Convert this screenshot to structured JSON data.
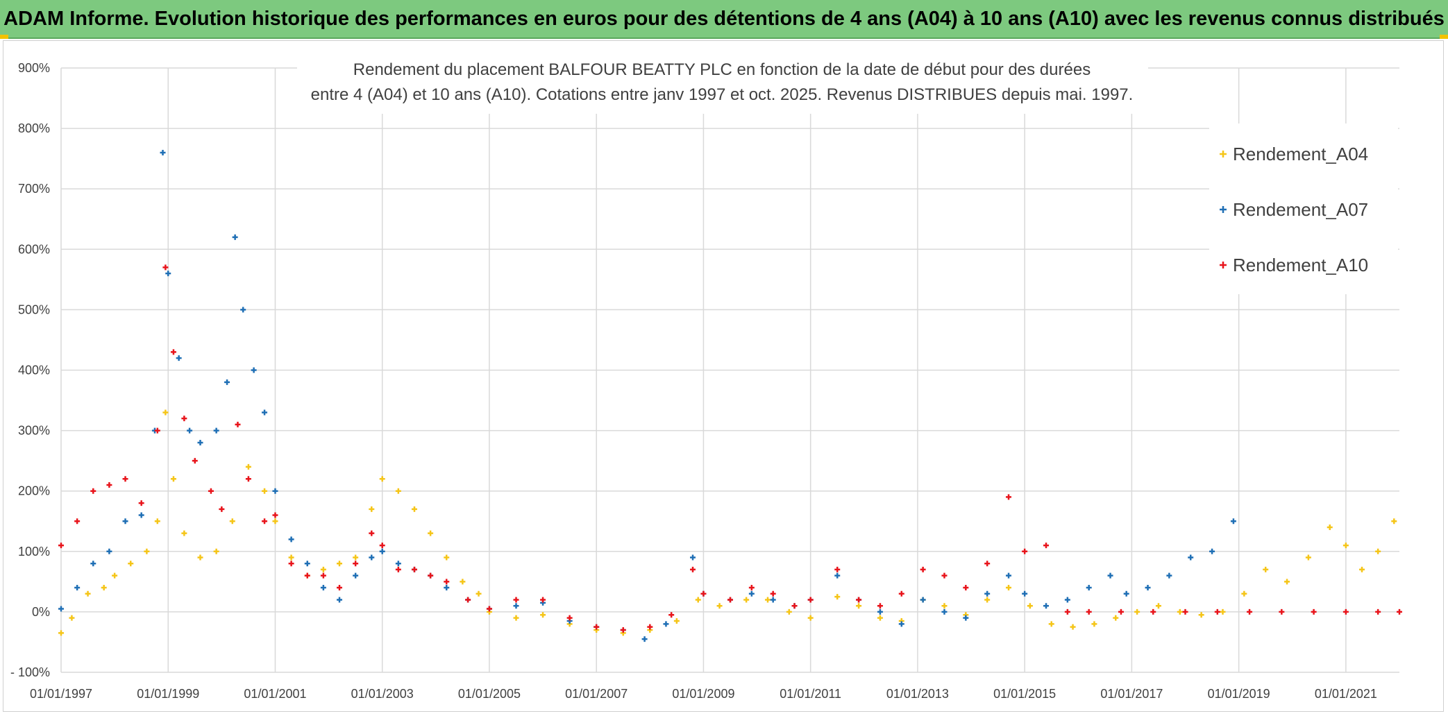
{
  "banner": {
    "text": "ADAM Informe. Evolution historique des performances en euros pour des détentions de 4 ans (A04) à 10 ans (A10) avec les revenus connus distribués"
  },
  "colors": {
    "banner_bg": "#7dc97f",
    "a04": "#f5c518",
    "a07": "#1f6fb5",
    "a10": "#e8141b",
    "grid": "#d9d9d9"
  },
  "chart_data": {
    "type": "scatter",
    "title_lines": [
      "Rendement du placement BALFOUR BEATTY PLC en fonction de la date de début pour des durées",
      "entre 4 (A04) et 10 ans (A10). Cotations entre janv 1997 et oct. 2025. Revenus DISTRIBUES depuis mai. 1997."
    ],
    "x_ticks": [
      "01/01/1997",
      "01/01/1999",
      "01/01/2001",
      "01/01/2003",
      "01/01/2005",
      "01/01/2007",
      "01/01/2009",
      "01/01/2011",
      "01/01/2013",
      "01/01/2015",
      "01/01/2017",
      "01/01/2019",
      "01/01/2021"
    ],
    "x_range": [
      1997.0,
      2022.0
    ],
    "y_ticks": [
      "- 100%",
      "0%",
      "100%",
      "200%",
      "300%",
      "400%",
      "500%",
      "600%",
      "700%",
      "800%",
      "900%"
    ],
    "y_range": [
      -100,
      900
    ],
    "legend_position": "top-right",
    "series": [
      {
        "name": "Rendement_A04",
        "color": "#f5c518",
        "points": [
          [
            1997.0,
            -35
          ],
          [
            1997.2,
            -10
          ],
          [
            1997.5,
            30
          ],
          [
            1997.8,
            40
          ],
          [
            1998.0,
            60
          ],
          [
            1998.3,
            80
          ],
          [
            1998.6,
            100
          ],
          [
            1998.8,
            150
          ],
          [
            1998.95,
            330
          ],
          [
            1999.1,
            220
          ],
          [
            1999.3,
            130
          ],
          [
            1999.6,
            90
          ],
          [
            1999.9,
            100
          ],
          [
            2000.2,
            150
          ],
          [
            2000.5,
            240
          ],
          [
            2000.8,
            200
          ],
          [
            2001.0,
            150
          ],
          [
            2001.3,
            90
          ],
          [
            2001.6,
            60
          ],
          [
            2001.9,
            70
          ],
          [
            2002.2,
            80
          ],
          [
            2002.5,
            90
          ],
          [
            2002.8,
            170
          ],
          [
            2003.0,
            220
          ],
          [
            2003.3,
            200
          ],
          [
            2003.6,
            170
          ],
          [
            2003.9,
            130
          ],
          [
            2004.2,
            90
          ],
          [
            2004.5,
            50
          ],
          [
            2004.8,
            30
          ],
          [
            2005.0,
            0
          ],
          [
            2005.5,
            -10
          ],
          [
            2006.0,
            -5
          ],
          [
            2006.5,
            -20
          ],
          [
            2007.0,
            -30
          ],
          [
            2007.5,
            -35
          ],
          [
            2008.0,
            -30
          ],
          [
            2008.5,
            -15
          ],
          [
            2008.9,
            20
          ],
          [
            2009.3,
            10
          ],
          [
            2009.8,
            20
          ],
          [
            2010.2,
            20
          ],
          [
            2010.6,
            0
          ],
          [
            2011.0,
            -10
          ],
          [
            2011.5,
            25
          ],
          [
            2011.9,
            10
          ],
          [
            2012.3,
            -10
          ],
          [
            2012.7,
            -15
          ],
          [
            2013.1,
            20
          ],
          [
            2013.5,
            10
          ],
          [
            2013.9,
            -5
          ],
          [
            2014.3,
            20
          ],
          [
            2014.7,
            40
          ],
          [
            2015.1,
            10
          ],
          [
            2015.5,
            -20
          ],
          [
            2015.9,
            -25
          ],
          [
            2016.3,
            -20
          ],
          [
            2016.7,
            -10
          ],
          [
            2017.1,
            0
          ],
          [
            2017.5,
            10
          ],
          [
            2017.9,
            0
          ],
          [
            2018.3,
            -5
          ],
          [
            2018.7,
            0
          ],
          [
            2019.1,
            30
          ],
          [
            2019.5,
            70
          ],
          [
            2019.9,
            50
          ],
          [
            2020.3,
            90
          ],
          [
            2020.7,
            140
          ],
          [
            2021.0,
            110
          ],
          [
            2021.3,
            70
          ],
          [
            2021.6,
            100
          ],
          [
            2021.9,
            150
          ]
        ]
      },
      {
        "name": "Rendement_A07",
        "color": "#1f6fb5",
        "points": [
          [
            1997.0,
            5
          ],
          [
            1997.3,
            40
          ],
          [
            1997.6,
            80
          ],
          [
            1997.9,
            100
          ],
          [
            1998.2,
            150
          ],
          [
            1998.5,
            160
          ],
          [
            1998.75,
            300
          ],
          [
            1998.9,
            760
          ],
          [
            1999.0,
            560
          ],
          [
            1999.2,
            420
          ],
          [
            1999.4,
            300
          ],
          [
            1999.6,
            280
          ],
          [
            1999.9,
            300
          ],
          [
            2000.1,
            380
          ],
          [
            2000.25,
            620
          ],
          [
            2000.4,
            500
          ],
          [
            2000.6,
            400
          ],
          [
            2000.8,
            330
          ],
          [
            2001.0,
            200
          ],
          [
            2001.3,
            120
          ],
          [
            2001.6,
            80
          ],
          [
            2001.9,
            40
          ],
          [
            2002.2,
            20
          ],
          [
            2002.5,
            60
          ],
          [
            2002.8,
            90
          ],
          [
            2003.0,
            100
          ],
          [
            2003.3,
            80
          ],
          [
            2003.6,
            70
          ],
          [
            2003.9,
            60
          ],
          [
            2004.2,
            40
          ],
          [
            2004.6,
            20
          ],
          [
            2005.0,
            5
          ],
          [
            2005.5,
            10
          ],
          [
            2006.0,
            15
          ],
          [
            2006.5,
            -15
          ],
          [
            2007.0,
            -25
          ],
          [
            2007.5,
            -30
          ],
          [
            2007.9,
            -45
          ],
          [
            2008.3,
            -20
          ],
          [
            2008.8,
            90
          ],
          [
            2009.0,
            30
          ],
          [
            2009.5,
            20
          ],
          [
            2009.9,
            30
          ],
          [
            2010.3,
            20
          ],
          [
            2010.7,
            10
          ],
          [
            2011.0,
            20
          ],
          [
            2011.5,
            60
          ],
          [
            2011.9,
            20
          ],
          [
            2012.3,
            0
          ],
          [
            2012.7,
            -20
          ],
          [
            2013.1,
            20
          ],
          [
            2013.5,
            0
          ],
          [
            2013.9,
            -10
          ],
          [
            2014.3,
            30
          ],
          [
            2014.7,
            60
          ],
          [
            2015.0,
            30
          ],
          [
            2015.4,
            10
          ],
          [
            2015.8,
            20
          ],
          [
            2016.2,
            40
          ],
          [
            2016.6,
            60
          ],
          [
            2016.9,
            30
          ],
          [
            2017.3,
            40
          ],
          [
            2017.7,
            60
          ],
          [
            2018.1,
            90
          ],
          [
            2018.5,
            100
          ],
          [
            2018.9,
            150
          ]
        ]
      },
      {
        "name": "Rendement_A10",
        "color": "#e8141b",
        "points": [
          [
            1997.0,
            110
          ],
          [
            1997.3,
            150
          ],
          [
            1997.6,
            200
          ],
          [
            1997.9,
            210
          ],
          [
            1998.2,
            220
          ],
          [
            1998.5,
            180
          ],
          [
            1998.8,
            300
          ],
          [
            1998.95,
            570
          ],
          [
            1999.1,
            430
          ],
          [
            1999.3,
            320
          ],
          [
            1999.5,
            250
          ],
          [
            1999.8,
            200
          ],
          [
            2000.0,
            170
          ],
          [
            2000.3,
            310
          ],
          [
            2000.5,
            220
          ],
          [
            2000.8,
            150
          ],
          [
            2001.0,
            160
          ],
          [
            2001.3,
            80
          ],
          [
            2001.6,
            60
          ],
          [
            2001.9,
            60
          ],
          [
            2002.2,
            40
          ],
          [
            2002.5,
            80
          ],
          [
            2002.8,
            130
          ],
          [
            2003.0,
            110
          ],
          [
            2003.3,
            70
          ],
          [
            2003.6,
            70
          ],
          [
            2003.9,
            60
          ],
          [
            2004.2,
            50
          ],
          [
            2004.6,
            20
          ],
          [
            2005.0,
            5
          ],
          [
            2005.5,
            20
          ],
          [
            2006.0,
            20
          ],
          [
            2006.5,
            -10
          ],
          [
            2007.0,
            -25
          ],
          [
            2007.5,
            -30
          ],
          [
            2008.0,
            -25
          ],
          [
            2008.4,
            -5
          ],
          [
            2008.8,
            70
          ],
          [
            2009.0,
            30
          ],
          [
            2009.5,
            20
          ],
          [
            2009.9,
            40
          ],
          [
            2010.3,
            30
          ],
          [
            2010.7,
            10
          ],
          [
            2011.0,
            20
          ],
          [
            2011.5,
            70
          ],
          [
            2011.9,
            20
          ],
          [
            2012.3,
            10
          ],
          [
            2012.7,
            30
          ],
          [
            2013.1,
            70
          ],
          [
            2013.5,
            60
          ],
          [
            2013.9,
            40
          ],
          [
            2014.3,
            80
          ],
          [
            2014.7,
            190
          ],
          [
            2015.0,
            100
          ],
          [
            2015.4,
            110
          ],
          [
            2015.8,
            0
          ],
          [
            2016.2,
            0
          ],
          [
            2016.8,
            0
          ],
          [
            2017.4,
            0
          ],
          [
            2018.0,
            0
          ],
          [
            2018.6,
            0
          ],
          [
            2019.2,
            0
          ],
          [
            2019.8,
            0
          ],
          [
            2020.4,
            0
          ],
          [
            2021.0,
            0
          ],
          [
            2021.6,
            0
          ],
          [
            2022.0,
            0
          ]
        ]
      }
    ]
  }
}
